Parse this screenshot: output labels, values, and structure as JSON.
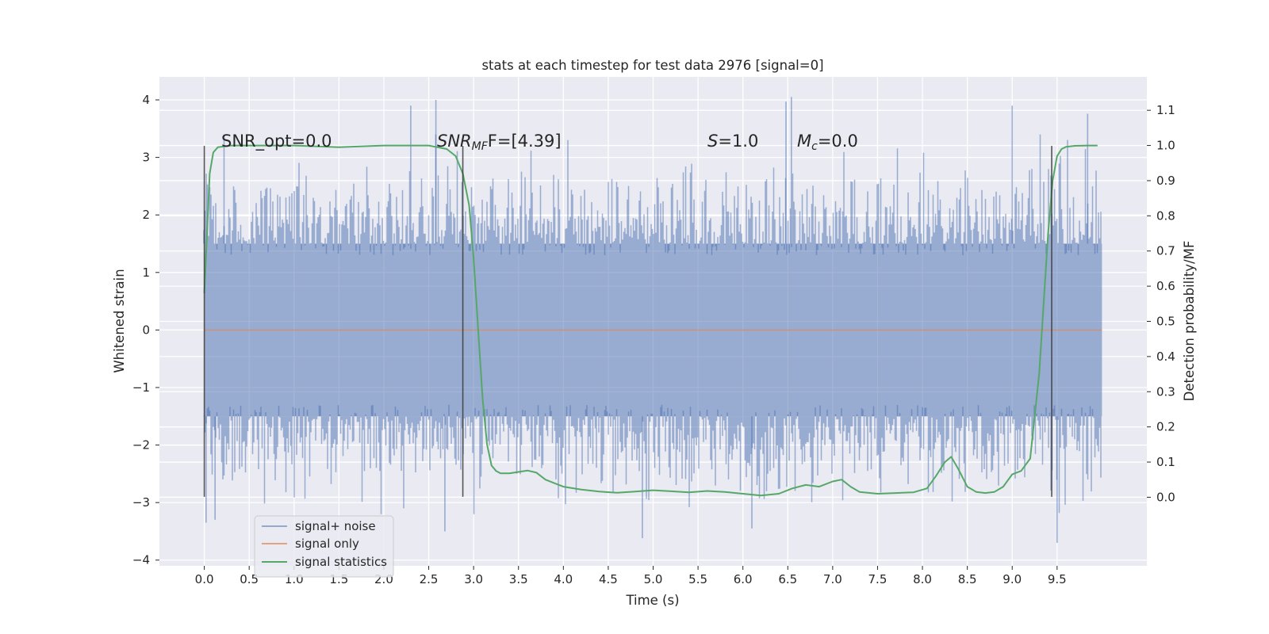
{
  "chart_data": {
    "type": "line",
    "title": "stats at each timestep for test data 2976 [signal=0]",
    "xlabel": "Time (s)",
    "ylabel_left": "Whitened strain",
    "ylabel_right": "Detection probability/MF",
    "xlim": [
      -0.5,
      10.5
    ],
    "ylim_left": [
      -4.1,
      4.4
    ],
    "ylim_right": [
      -0.195,
      1.195
    ],
    "x_ticks": [
      "0.0",
      "0.5",
      "1.0",
      "1.5",
      "2.0",
      "2.5",
      "3.0",
      "3.5",
      "4.0",
      "4.5",
      "5.0",
      "5.5",
      "6.0",
      "6.5",
      "7.0",
      "7.5",
      "8.0",
      "8.5",
      "9.0",
      "9.5"
    ],
    "y_ticks_left": [
      "−4",
      "−3",
      "−2",
      "−1",
      "0",
      "1",
      "2",
      "3",
      "4"
    ],
    "y_ticks_right": [
      "0.0",
      "0.1",
      "0.2",
      "0.3",
      "0.4",
      "0.5",
      "0.6",
      "0.7",
      "0.8",
      "0.9",
      "1.0",
      "1.1"
    ],
    "grid": true,
    "legend_position": "lower-left",
    "annotations": {
      "snr_opt": "SNR_opt=0.0",
      "snr_mf_main": "SNR",
      "snr_mf_sub": "MF",
      "snr_mf_value": "F=[4.39]",
      "s_main": "S",
      "s_value": "=1.0",
      "mc_main": "M",
      "mc_sub": "c",
      "mc_value": "=0.0"
    },
    "vertical_markers": [
      {
        "x": 0.0,
        "y_range": [
          -2.9,
          3.2
        ]
      },
      {
        "x": 2.88,
        "y_range": [
          -2.9,
          3.2
        ]
      },
      {
        "x": 9.44,
        "y_range": [
          -2.9,
          3.2
        ]
      }
    ],
    "series": [
      {
        "name": "signal+ noise",
        "color": "#4c72b0",
        "axis": "left",
        "kind": "noise",
        "x_range": [
          0.0,
          10.0
        ],
        "band": [
          -1.5,
          1.5
        ],
        "peaks_upper": [
          [
            0.22,
            3.4
          ],
          [
            2.3,
            3.9
          ],
          [
            2.58,
            4.0
          ],
          [
            6.48,
            3.97
          ],
          [
            6.54,
            4.05
          ],
          [
            9.0,
            3.9
          ],
          [
            9.84,
            3.76
          ]
        ],
        "peaks_lower": [
          [
            0.02,
            -3.35
          ],
          [
            0.12,
            -3.3
          ],
          [
            2.68,
            -3.5
          ],
          [
            4.88,
            -3.62
          ],
          [
            6.1,
            -3.45
          ],
          [
            9.5,
            -3.7
          ]
        ]
      },
      {
        "name": "signal only",
        "color": "#dd8452",
        "axis": "left",
        "x": [
          0.0,
          10.0
        ],
        "y": [
          0.0,
          0.0
        ]
      },
      {
        "name": "signal statistics",
        "color": "#55a868",
        "axis": "right",
        "x": [
          0.0,
          0.06,
          0.1,
          0.15,
          0.3,
          0.5,
          1.0,
          1.5,
          2.0,
          2.5,
          2.7,
          2.8,
          2.88,
          2.95,
          3.0,
          3.05,
          3.1,
          3.15,
          3.2,
          3.25,
          3.3,
          3.4,
          3.5,
          3.6,
          3.7,
          3.8,
          3.9,
          4.0,
          4.2,
          4.4,
          4.6,
          4.8,
          5.0,
          5.2,
          5.4,
          5.6,
          5.8,
          6.0,
          6.2,
          6.4,
          6.55,
          6.7,
          6.85,
          7.0,
          7.1,
          7.2,
          7.3,
          7.5,
          7.7,
          7.9,
          8.05,
          8.15,
          8.25,
          8.32,
          8.4,
          8.5,
          8.6,
          8.7,
          8.8,
          8.9,
          9.0,
          9.1,
          9.2,
          9.3,
          9.4,
          9.45,
          9.5,
          9.55,
          9.6,
          9.7,
          9.85,
          9.95
        ],
        "y": [
          0.58,
          0.92,
          0.98,
          0.995,
          1.0,
          1.0,
          1.0,
          0.995,
          1.0,
          1.0,
          0.99,
          0.97,
          0.92,
          0.83,
          0.68,
          0.48,
          0.28,
          0.15,
          0.09,
          0.075,
          0.068,
          0.068,
          0.072,
          0.076,
          0.07,
          0.05,
          0.04,
          0.03,
          0.022,
          0.016,
          0.013,
          0.016,
          0.02,
          0.017,
          0.014,
          0.018,
          0.015,
          0.01,
          0.005,
          0.01,
          0.025,
          0.035,
          0.03,
          0.045,
          0.05,
          0.03,
          0.015,
          0.01,
          0.012,
          0.014,
          0.025,
          0.06,
          0.1,
          0.115,
          0.08,
          0.03,
          0.015,
          0.012,
          0.015,
          0.03,
          0.065,
          0.075,
          0.11,
          0.35,
          0.75,
          0.9,
          0.97,
          0.99,
          0.996,
          0.999,
          1.0,
          1.0
        ]
      }
    ]
  }
}
